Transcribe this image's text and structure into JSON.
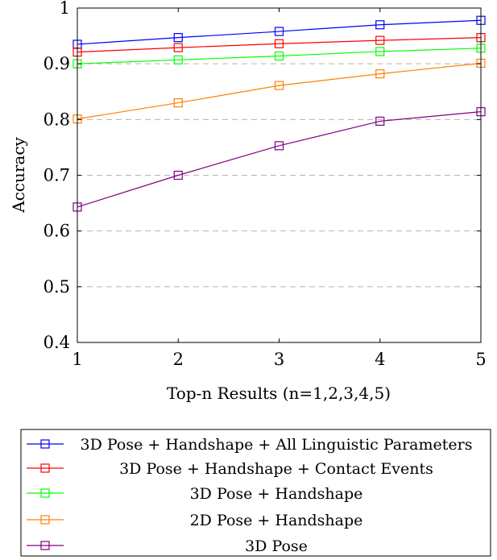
{
  "chart_data": {
    "type": "line",
    "xlabel": "Top-n Results (n=1,2,3,4,5)",
    "ylabel": "Accuracy",
    "x": [
      1,
      2,
      3,
      4,
      5
    ],
    "xlim": [
      1,
      5
    ],
    "ylim": [
      0.4,
      1
    ],
    "x_ticks": [
      "1",
      "2",
      "3",
      "4",
      "5"
    ],
    "y_ticks": [
      "0.4",
      "0.5",
      "0.6",
      "0.7",
      "0.8",
      "0.9",
      "1"
    ],
    "y_tick_values": [
      0.4,
      0.5,
      0.6,
      0.7,
      0.8,
      0.9,
      1.0
    ],
    "grid": "horizontal dashed",
    "legend_position": "bottom",
    "series": [
      {
        "name": "3D Pose + Handshape + All Linguistic Parameters",
        "color": "#0000ff",
        "values": [
          0.935,
          0.947,
          0.958,
          0.97,
          0.978
        ]
      },
      {
        "name": "3D Pose + Handshape + Contact Events",
        "color": "#ff0000",
        "values": [
          0.921,
          0.929,
          0.936,
          0.942,
          0.947
        ]
      },
      {
        "name": "3D Pose + Handshape",
        "color": "#00ff00",
        "values": [
          0.9,
          0.907,
          0.914,
          0.922,
          0.928
        ]
      },
      {
        "name": "2D Pose + Handshape",
        "color": "#ff8000",
        "values": [
          0.801,
          0.83,
          0.861,
          0.882,
          0.901
        ]
      },
      {
        "name": "3D Pose",
        "color": "#800080",
        "values": [
          0.643,
          0.7,
          0.753,
          0.797,
          0.814
        ]
      }
    ]
  }
}
